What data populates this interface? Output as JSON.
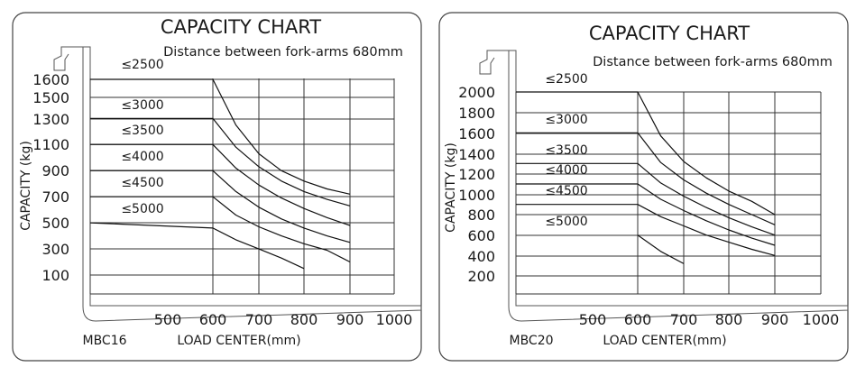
{
  "chart_data": [
    {
      "type": "line",
      "title": "CAPACITY CHART",
      "subtitle": "Distance between fork-arms 680mm",
      "ylabel": "CAPACITY (kg)",
      "xlabel": "LOAD CENTER(mm)",
      "model": "MBC16",
      "x_ticks": [
        "500",
        "600",
        "700",
        "800",
        "900",
        "1000"
      ],
      "y_ticks": [
        "1600",
        "1500",
        "1300",
        "1100",
        "900",
        "700",
        "500",
        "300",
        "100"
      ],
      "xlim": [
        600,
        1000
      ],
      "ylim": [
        100,
        1700
      ],
      "grid": true,
      "series": [
        {
          "name": "≤2500",
          "x": [
            500,
            600,
            650,
            700,
            750,
            800,
            850,
            900
          ],
          "y": [
            1600,
            1600,
            1250,
            1030,
            900,
            820,
            760,
            720
          ]
        },
        {
          "name": "≤3000",
          "x": [
            500,
            600,
            650,
            700,
            750,
            800,
            850,
            900
          ],
          "y": [
            1300,
            1300,
            1080,
            930,
            820,
            740,
            680,
            630
          ]
        },
        {
          "name": "≤3500",
          "x": [
            500,
            600,
            650,
            700,
            750,
            800,
            850,
            900
          ],
          "y": [
            1100,
            1100,
            920,
            790,
            690,
            610,
            540,
            480
          ]
        },
        {
          "name": "≤4000",
          "x": [
            500,
            600,
            650,
            700,
            750,
            800,
            850,
            900
          ],
          "y": [
            900,
            900,
            740,
            620,
            530,
            460,
            400,
            350
          ]
        },
        {
          "name": "≤4500",
          "x": [
            500,
            600,
            650,
            700,
            750,
            800,
            850,
            900
          ],
          "y": [
            700,
            700,
            560,
            470,
            400,
            340,
            290,
            200
          ]
        },
        {
          "name": "≤5000",
          "x": [
            500,
            600,
            650,
            700,
            750,
            800
          ],
          "y": [
            500,
            460,
            370,
            300,
            230,
            150
          ]
        }
      ]
    },
    {
      "type": "line",
      "title": "CAPACITY CHART",
      "subtitle": "Distance between fork-arms 680mm",
      "ylabel": "CAPACITY (kg)",
      "xlabel": "LOAD CENTER(mm)",
      "model": "MBC20",
      "x_ticks": [
        "500",
        "600",
        "700",
        "800",
        "900",
        "1000"
      ],
      "y_ticks": [
        "2000",
        "1800",
        "1600",
        "1400",
        "1200",
        "1000",
        "800",
        "600",
        "400",
        "200"
      ],
      "xlim": [
        600,
        1000
      ],
      "ylim": [
        200,
        2000
      ],
      "grid": true,
      "series": [
        {
          "name": "≤2500",
          "x": [
            500,
            600,
            650,
            700,
            750,
            800,
            850,
            900
          ],
          "y": [
            2000,
            2000,
            1570,
            1320,
            1160,
            1030,
            930,
            800
          ]
        },
        {
          "name": "≤3000",
          "x": [
            500,
            600,
            650,
            700,
            750,
            800,
            850,
            900
          ],
          "y": [
            1600,
            1600,
            1310,
            1140,
            1010,
            900,
            800,
            700
          ]
        },
        {
          "name": "≤3500",
          "x": [
            500,
            600,
            650,
            700,
            750,
            800,
            850,
            900
          ],
          "y": [
            1300,
            1300,
            1110,
            980,
            870,
            770,
            680,
            600
          ]
        },
        {
          "name": "≤4000",
          "x": [
            500,
            600,
            650,
            700,
            750,
            800,
            850,
            900
          ],
          "y": [
            1100,
            1100,
            950,
            840,
            740,
            650,
            570,
            500
          ]
        },
        {
          "name": "≤4500",
          "x": [
            500,
            600,
            650,
            700,
            750,
            800,
            850,
            900
          ],
          "y": [
            900,
            900,
            780,
            690,
            600,
            530,
            460,
            400
          ]
        },
        {
          "name": "≤5000",
          "x": [
            600,
            650,
            700
          ],
          "y": [
            600,
            440,
            320
          ]
        }
      ]
    }
  ]
}
